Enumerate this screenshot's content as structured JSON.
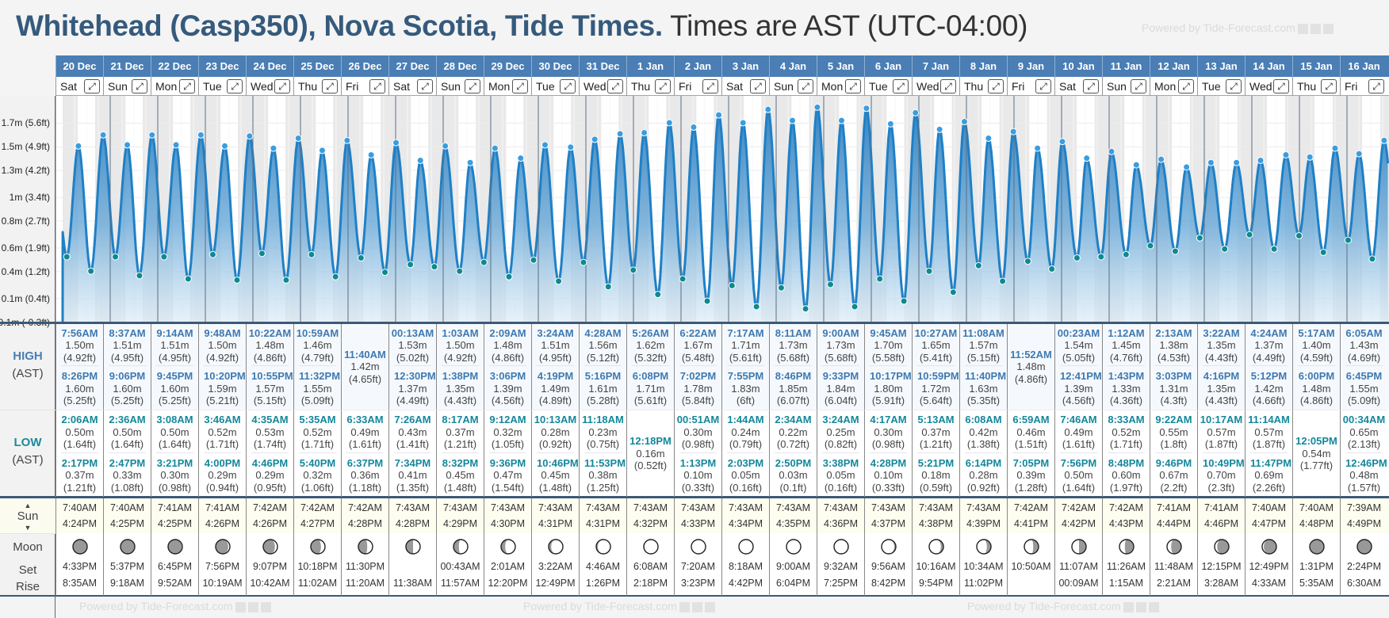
{
  "title": {
    "location": "Whitehead (Casp350), Nova Scotia, Tide Times.",
    "timezone": "Times are AST (UTC-04:00)"
  },
  "watermark": "Powered by Tide-Forecast.com",
  "labels": {
    "high": "HIGH",
    "low": "LOW",
    "ast": "(AST)",
    "sun": "Sun",
    "moon": "Moon",
    "set": "Set",
    "rise": "Rise",
    "expand_icon": "⤢"
  },
  "y_axis": [
    {
      "label": "1.7m (5.6ft)",
      "ft": 5.6
    },
    {
      "label": "1.5m (4.9ft)",
      "ft": 4.9
    },
    {
      "label": "1.3m (4.2ft)",
      "ft": 4.2
    },
    {
      "label": "1m (3.4ft)",
      "ft": 3.4
    },
    {
      "label": "0.8m (2.7ft)",
      "ft": 2.7
    },
    {
      "label": "0.6m (1.9ft)",
      "ft": 1.9
    },
    {
      "label": "0.4m (1.2ft)",
      "ft": 1.2
    },
    {
      "label": "0.1m (0.4ft)",
      "ft": 0.4
    },
    {
      "label": "-0.1m (-0.3ft)",
      "ft": -0.3
    }
  ],
  "colors": {
    "header": "#4a7eb4",
    "line": "#1f80c6",
    "high_dot": "#3a9de0",
    "low_dot": "#0e8a8f",
    "night": "#e9e9e9"
  },
  "days": [
    {
      "date": "20 Dec",
      "dow": "Sat",
      "high": [
        {
          "time": "7:56AM",
          "m": "1.50m",
          "ft": "4.92ft"
        },
        {
          "time": "8:26PM",
          "m": "1.60m",
          "ft": "5.25ft"
        }
      ],
      "low": [
        {
          "time": "2:06AM",
          "m": "0.50m",
          "ft": "1.64ft"
        },
        {
          "time": "2:17PM",
          "m": "0.37m",
          "ft": "1.21ft"
        }
      ],
      "sunrise": "7:40AM",
      "sunset": "4:24PM",
      "moonset": "4:33PM",
      "moonrise": "8:35AM",
      "moon_phase": 0.0
    },
    {
      "date": "21 Dec",
      "dow": "Sun",
      "high": [
        {
          "time": "8:37AM",
          "m": "1.51m",
          "ft": "4.95ft"
        },
        {
          "time": "9:06PM",
          "m": "1.60m",
          "ft": "5.25ft"
        }
      ],
      "low": [
        {
          "time": "2:36AM",
          "m": "0.50m",
          "ft": "1.64ft"
        },
        {
          "time": "2:47PM",
          "m": "0.33m",
          "ft": "1.08ft"
        }
      ],
      "sunrise": "7:40AM",
      "sunset": "4:25PM",
      "moonset": "5:37PM",
      "moonrise": "9:18AM",
      "moon_phase": 0.04
    },
    {
      "date": "22 Dec",
      "dow": "Mon",
      "high": [
        {
          "time": "9:14AM",
          "m": "1.51m",
          "ft": "4.95ft"
        },
        {
          "time": "9:45PM",
          "m": "1.60m",
          "ft": "5.25ft"
        }
      ],
      "low": [
        {
          "time": "3:08AM",
          "m": "0.50m",
          "ft": "1.64ft"
        },
        {
          "time": "3:21PM",
          "m": "0.30m",
          "ft": "0.98ft"
        }
      ],
      "sunrise": "7:41AM",
      "sunset": "4:25PM",
      "moonset": "6:45PM",
      "moonrise": "9:52AM",
      "moon_phase": 0.07
    },
    {
      "date": "23 Dec",
      "dow": "Tue",
      "high": [
        {
          "time": "9:48AM",
          "m": "1.50m",
          "ft": "4.92ft"
        },
        {
          "time": "10:20PM",
          "m": "1.59m",
          "ft": "5.21ft"
        }
      ],
      "low": [
        {
          "time": "3:46AM",
          "m": "0.52m",
          "ft": "1.71ft"
        },
        {
          "time": "4:00PM",
          "m": "0.29m",
          "ft": "0.94ft"
        }
      ],
      "sunrise": "7:41AM",
      "sunset": "4:26PM",
      "moonset": "7:56PM",
      "moonrise": "10:19AM",
      "moon_phase": 0.11
    },
    {
      "date": "24 Dec",
      "dow": "Wed",
      "high": [
        {
          "time": "10:22AM",
          "m": "1.48m",
          "ft": "4.86ft"
        },
        {
          "time": "10:55PM",
          "m": "1.57m",
          "ft": "5.15ft"
        }
      ],
      "low": [
        {
          "time": "4:35AM",
          "m": "0.53m",
          "ft": "1.74ft"
        },
        {
          "time": "4:46PM",
          "m": "0.29m",
          "ft": "0.95ft"
        }
      ],
      "sunrise": "7:42AM",
      "sunset": "4:26PM",
      "moonset": "9:07PM",
      "moonrise": "10:42AM",
      "moon_phase": 0.14
    },
    {
      "date": "25 Dec",
      "dow": "Thu",
      "high": [
        {
          "time": "10:59AM",
          "m": "1.46m",
          "ft": "4.79ft"
        },
        {
          "time": "11:32PM",
          "m": "1.55m",
          "ft": "5.09ft"
        }
      ],
      "low": [
        {
          "time": "5:35AM",
          "m": "0.52m",
          "ft": "1.71ft"
        },
        {
          "time": "5:40PM",
          "m": "0.32m",
          "ft": "1.06ft"
        }
      ],
      "sunrise": "7:42AM",
      "sunset": "4:27PM",
      "moonset": "10:18PM",
      "moonrise": "11:02AM",
      "moon_phase": 0.18
    },
    {
      "date": "26 Dec",
      "dow": "Fri",
      "high": [
        {
          "time": "11:40AM",
          "m": "1.42m",
          "ft": "4.65ft"
        }
      ],
      "low": [
        {
          "time": "6:33AM",
          "m": "0.49m",
          "ft": "1.61ft"
        },
        {
          "time": "6:37PM",
          "m": "0.36m",
          "ft": "1.18ft"
        }
      ],
      "sunrise": "7:42AM",
      "sunset": "4:28PM",
      "moonset": "11:30PM",
      "moonrise": "11:20AM",
      "moon_phase": 0.21
    },
    {
      "date": "27 Dec",
      "dow": "Sat",
      "high": [
        {
          "time": "00:13AM",
          "m": "1.53m",
          "ft": "5.02ft"
        },
        {
          "time": "12:30PM",
          "m": "1.37m",
          "ft": "4.49ft"
        }
      ],
      "low": [
        {
          "time": "7:26AM",
          "m": "0.43m",
          "ft": "1.41ft"
        },
        {
          "time": "7:34PM",
          "m": "0.41m",
          "ft": "1.35ft"
        }
      ],
      "sunrise": "7:43AM",
      "sunset": "4:28PM",
      "moonset": "",
      "moonrise": "11:38AM",
      "moon_phase": 0.25
    },
    {
      "date": "28 Dec",
      "dow": "Sun",
      "high": [
        {
          "time": "1:03AM",
          "m": "1.50m",
          "ft": "4.92ft"
        },
        {
          "time": "1:38PM",
          "m": "1.35m",
          "ft": "4.43ft"
        }
      ],
      "low": [
        {
          "time": "8:17AM",
          "m": "0.37m",
          "ft": "1.21ft"
        },
        {
          "time": "8:32PM",
          "m": "0.45m",
          "ft": "1.48ft"
        }
      ],
      "sunrise": "7:43AM",
      "sunset": "4:29PM",
      "moonset": "00:43AM",
      "moonrise": "11:57AM",
      "moon_phase": 0.29
    },
    {
      "date": "29 Dec",
      "dow": "Mon",
      "high": [
        {
          "time": "2:09AM",
          "m": "1.48m",
          "ft": "4.86ft"
        },
        {
          "time": "3:06PM",
          "m": "1.39m",
          "ft": "4.56ft"
        }
      ],
      "low": [
        {
          "time": "9:12AM",
          "m": "0.32m",
          "ft": "1.05ft"
        },
        {
          "time": "9:36PM",
          "m": "0.47m",
          "ft": "1.54ft"
        }
      ],
      "sunrise": "7:43AM",
      "sunset": "4:30PM",
      "moonset": "2:01AM",
      "moonrise": "12:20PM",
      "moon_phase": 0.32
    },
    {
      "date": "30 Dec",
      "dow": "Tue",
      "high": [
        {
          "time": "3:24AM",
          "m": "1.51m",
          "ft": "4.95ft"
        },
        {
          "time": "4:19PM",
          "m": "1.49m",
          "ft": "4.89ft"
        }
      ],
      "low": [
        {
          "time": "10:13AM",
          "m": "0.28m",
          "ft": "0.92ft"
        },
        {
          "time": "10:46PM",
          "m": "0.45m",
          "ft": "1.48ft"
        }
      ],
      "sunrise": "7:43AM",
      "sunset": "4:31PM",
      "moonset": "3:22AM",
      "moonrise": "12:49PM",
      "moon_phase": 0.36
    },
    {
      "date": "31 Dec",
      "dow": "Wed",
      "high": [
        {
          "time": "4:28AM",
          "m": "1.56m",
          "ft": "5.12ft"
        },
        {
          "time": "5:16PM",
          "m": "1.61m",
          "ft": "5.28ft"
        }
      ],
      "low": [
        {
          "time": "11:18AM",
          "m": "0.23m",
          "ft": "0.75ft"
        },
        {
          "time": "11:53PM",
          "m": "0.38m",
          "ft": "1.25ft"
        }
      ],
      "sunrise": "7:43AM",
      "sunset": "4:31PM",
      "moonset": "4:46AM",
      "moonrise": "1:26PM",
      "moon_phase": 0.39
    },
    {
      "date": "1 Jan",
      "dow": "Thu",
      "high": [
        {
          "time": "5:26AM",
          "m": "1.62m",
          "ft": "5.32ft"
        },
        {
          "time": "6:08PM",
          "m": "1.71m",
          "ft": "5.61ft"
        }
      ],
      "low": [
        {
          "time": "12:18PM",
          "m": "0.16m",
          "ft": "0.52ft"
        }
      ],
      "sunrise": "7:43AM",
      "sunset": "4:32PM",
      "moonset": "6:08AM",
      "moonrise": "2:18PM",
      "moon_phase": 0.43
    },
    {
      "date": "2 Jan",
      "dow": "Fri",
      "high": [
        {
          "time": "6:22AM",
          "m": "1.67m",
          "ft": "5.48ft"
        },
        {
          "time": "7:02PM",
          "m": "1.78m",
          "ft": "5.84ft"
        }
      ],
      "low": [
        {
          "time": "00:51AM",
          "m": "0.30m",
          "ft": "0.98ft"
        },
        {
          "time": "1:13PM",
          "m": "0.10m",
          "ft": "0.33ft"
        }
      ],
      "sunrise": "7:43AM",
      "sunset": "4:33PM",
      "moonset": "7:20AM",
      "moonrise": "3:23PM",
      "moon_phase": 0.46
    },
    {
      "date": "3 Jan",
      "dow": "Sat",
      "high": [
        {
          "time": "7:17AM",
          "m": "1.71m",
          "ft": "5.61ft"
        },
        {
          "time": "7:55PM",
          "m": "1.83m",
          "ft": "6ft"
        }
      ],
      "low": [
        {
          "time": "1:44AM",
          "m": "0.24m",
          "ft": "0.79ft"
        },
        {
          "time": "2:03PM",
          "m": "0.05m",
          "ft": "0.16ft"
        }
      ],
      "sunrise": "7:43AM",
      "sunset": "4:34PM",
      "moonset": "8:18AM",
      "moonrise": "4:42PM",
      "moon_phase": 0.5
    },
    {
      "date": "4 Jan",
      "dow": "Sun",
      "high": [
        {
          "time": "8:11AM",
          "m": "1.73m",
          "ft": "5.68ft"
        },
        {
          "time": "8:46PM",
          "m": "1.85m",
          "ft": "6.07ft"
        }
      ],
      "low": [
        {
          "time": "2:34AM",
          "m": "0.22m",
          "ft": "0.72ft"
        },
        {
          "time": "2:50PM",
          "m": "0.03m",
          "ft": "0.1ft"
        }
      ],
      "sunrise": "7:43AM",
      "sunset": "4:35PM",
      "moonset": "9:00AM",
      "moonrise": "6:04PM",
      "moon_phase": 0.54
    },
    {
      "date": "5 Jan",
      "dow": "Mon",
      "high": [
        {
          "time": "9:00AM",
          "m": "1.73m",
          "ft": "5.68ft"
        },
        {
          "time": "9:33PM",
          "m": "1.84m",
          "ft": "6.04ft"
        }
      ],
      "low": [
        {
          "time": "3:24AM",
          "m": "0.25m",
          "ft": "0.82ft"
        },
        {
          "time": "3:38PM",
          "m": "0.05m",
          "ft": "0.16ft"
        }
      ],
      "sunrise": "7:43AM",
      "sunset": "4:36PM",
      "moonset": "9:32AM",
      "moonrise": "7:25PM",
      "moon_phase": 0.57
    },
    {
      "date": "6 Jan",
      "dow": "Tue",
      "high": [
        {
          "time": "9:45AM",
          "m": "1.70m",
          "ft": "5.58ft"
        },
        {
          "time": "10:17PM",
          "m": "1.80m",
          "ft": "5.91ft"
        }
      ],
      "low": [
        {
          "time": "4:17AM",
          "m": "0.30m",
          "ft": "0.98ft"
        },
        {
          "time": "4:28PM",
          "m": "0.10m",
          "ft": "0.33ft"
        }
      ],
      "sunrise": "7:43AM",
      "sunset": "4:37PM",
      "moonset": "9:56AM",
      "moonrise": "8:42PM",
      "moon_phase": 0.61
    },
    {
      "date": "7 Jan",
      "dow": "Wed",
      "high": [
        {
          "time": "10:27AM",
          "m": "1.65m",
          "ft": "5.41ft"
        },
        {
          "time": "10:59PM",
          "m": "1.72m",
          "ft": "5.64ft"
        }
      ],
      "low": [
        {
          "time": "5:13AM",
          "m": "0.37m",
          "ft": "1.21ft"
        },
        {
          "time": "5:21PM",
          "m": "0.18m",
          "ft": "0.59ft"
        }
      ],
      "sunrise": "7:43AM",
      "sunset": "4:38PM",
      "moonset": "10:16AM",
      "moonrise": "9:54PM",
      "moon_phase": 0.64
    },
    {
      "date": "8 Jan",
      "dow": "Thu",
      "high": [
        {
          "time": "11:08AM",
          "m": "1.57m",
          "ft": "5.15ft"
        },
        {
          "time": "11:40PM",
          "m": "1.63m",
          "ft": "5.35ft"
        }
      ],
      "low": [
        {
          "time": "6:08AM",
          "m": "0.42m",
          "ft": "1.38ft"
        },
        {
          "time": "6:14PM",
          "m": "0.28m",
          "ft": "0.92ft"
        }
      ],
      "sunrise": "7:43AM",
      "sunset": "4:39PM",
      "moonset": "10:34AM",
      "moonrise": "11:02PM",
      "moon_phase": 0.68
    },
    {
      "date": "9 Jan",
      "dow": "Fri",
      "high": [
        {
          "time": "11:52AM",
          "m": "1.48m",
          "ft": "4.86ft"
        }
      ],
      "low": [
        {
          "time": "6:59AM",
          "m": "0.46m",
          "ft": "1.51ft"
        },
        {
          "time": "7:05PM",
          "m": "0.39m",
          "ft": "1.28ft"
        }
      ],
      "sunrise": "7:42AM",
      "sunset": "4:41PM",
      "moonset": "10:50AM",
      "moonrise": "",
      "moon_phase": 0.71
    },
    {
      "date": "10 Jan",
      "dow": "Sat",
      "high": [
        {
          "time": "00:23AM",
          "m": "1.54m",
          "ft": "5.05ft"
        },
        {
          "time": "12:41PM",
          "m": "1.39m",
          "ft": "4.56ft"
        }
      ],
      "low": [
        {
          "time": "7:46AM",
          "m": "0.49m",
          "ft": "1.61ft"
        },
        {
          "time": "7:56PM",
          "m": "0.50m",
          "ft": "1.64ft"
        }
      ],
      "sunrise": "7:42AM",
      "sunset": "4:42PM",
      "moonset": "11:07AM",
      "moonrise": "00:09AM",
      "moon_phase": 0.75
    },
    {
      "date": "11 Jan",
      "dow": "Sun",
      "high": [
        {
          "time": "1:12AM",
          "m": "1.45m",
          "ft": "4.76ft"
        },
        {
          "time": "1:43PM",
          "m": "1.33m",
          "ft": "4.36ft"
        }
      ],
      "low": [
        {
          "time": "8:33AM",
          "m": "0.52m",
          "ft": "1.71ft"
        },
        {
          "time": "8:48PM",
          "m": "0.60m",
          "ft": "1.97ft"
        }
      ],
      "sunrise": "7:42AM",
      "sunset": "4:43PM",
      "moonset": "11:26AM",
      "moonrise": "1:15AM",
      "moon_phase": 0.79
    },
    {
      "date": "12 Jan",
      "dow": "Mon",
      "high": [
        {
          "time": "2:13AM",
          "m": "1.38m",
          "ft": "4.53ft"
        },
        {
          "time": "3:03PM",
          "m": "1.31m",
          "ft": "4.3ft"
        }
      ],
      "low": [
        {
          "time": "9:22AM",
          "m": "0.55m",
          "ft": "1.8ft"
        },
        {
          "time": "9:46PM",
          "m": "0.67m",
          "ft": "2.2ft"
        }
      ],
      "sunrise": "7:41AM",
      "sunset": "4:44PM",
      "moonset": "11:48AM",
      "moonrise": "2:21AM",
      "moon_phase": 0.82
    },
    {
      "date": "13 Jan",
      "dow": "Tue",
      "high": [
        {
          "time": "3:22AM",
          "m": "1.35m",
          "ft": "4.43ft"
        },
        {
          "time": "4:16PM",
          "m": "1.35m",
          "ft": "4.43ft"
        }
      ],
      "low": [
        {
          "time": "10:17AM",
          "m": "0.57m",
          "ft": "1.87ft"
        },
        {
          "time": "10:49PM",
          "m": "0.70m",
          "ft": "2.3ft"
        }
      ],
      "sunrise": "7:41AM",
      "sunset": "4:46PM",
      "moonset": "12:15PM",
      "moonrise": "3:28AM",
      "moon_phase": 0.86
    },
    {
      "date": "14 Jan",
      "dow": "Wed",
      "high": [
        {
          "time": "4:24AM",
          "m": "1.37m",
          "ft": "4.49ft"
        },
        {
          "time": "5:12PM",
          "m": "1.42m",
          "ft": "4.66ft"
        }
      ],
      "low": [
        {
          "time": "11:14AM",
          "m": "0.57m",
          "ft": "1.87ft"
        },
        {
          "time": "11:47PM",
          "m": "0.69m",
          "ft": "2.26ft"
        }
      ],
      "sunrise": "7:40AM",
      "sunset": "4:47PM",
      "moonset": "12:49PM",
      "moonrise": "4:33AM",
      "moon_phase": 0.89
    },
    {
      "date": "15 Jan",
      "dow": "Thu",
      "high": [
        {
          "time": "5:17AM",
          "m": "1.40m",
          "ft": "4.59ft"
        },
        {
          "time": "6:00PM",
          "m": "1.48m",
          "ft": "4.86ft"
        }
      ],
      "low": [
        {
          "time": "12:05PM",
          "m": "0.54m",
          "ft": "1.77ft"
        }
      ],
      "sunrise": "7:40AM",
      "sunset": "4:48PM",
      "moonset": "1:31PM",
      "moonrise": "5:35AM",
      "moon_phase": 0.93
    },
    {
      "date": "16 Jan",
      "dow": "Fri",
      "high": [
        {
          "time": "6:05AM",
          "m": "1.43m",
          "ft": "4.69ft"
        },
        {
          "time": "6:45PM",
          "m": "1.55m",
          "ft": "5.09ft"
        }
      ],
      "low": [
        {
          "time": "00:34AM",
          "m": "0.65m",
          "ft": "2.13ft"
        },
        {
          "time": "12:46PM",
          "m": "0.48m",
          "ft": "1.57ft"
        }
      ],
      "sunrise": "7:39AM",
      "sunset": "4:49PM",
      "moonset": "2:24PM",
      "moonrise": "6:30AM",
      "moon_phase": 0.96
    }
  ]
}
